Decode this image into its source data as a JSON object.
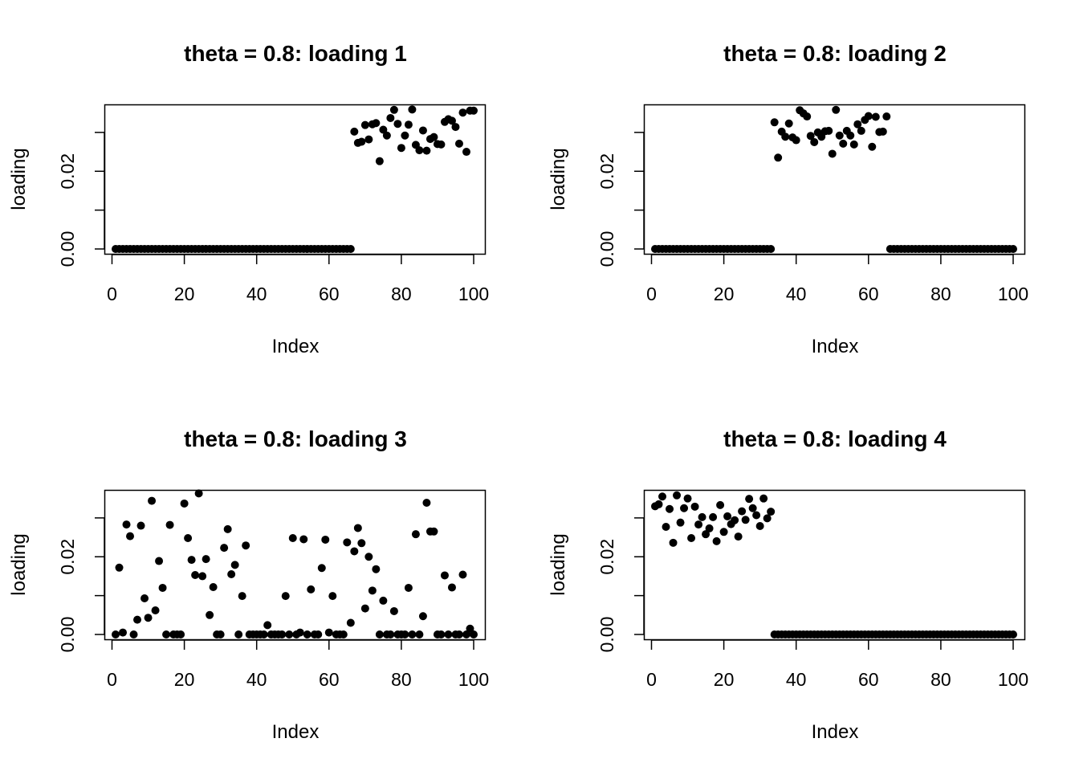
{
  "chart_data": [
    {
      "type": "scatter",
      "title": "theta = 0.8: loading 1",
      "xlabel": "Index",
      "ylabel": "loading",
      "xlim": [
        1,
        100
      ],
      "ylim": [
        0,
        0.037
      ],
      "xticks": [
        0,
        20,
        40,
        60,
        80,
        100
      ],
      "yticks": [
        0.0,
        0.01,
        0.02,
        0.03
      ],
      "ytick_labels": [
        "0.00",
        "",
        "0.02",
        ""
      ],
      "point_color": "#000000",
      "x": [
        1,
        2,
        3,
        4,
        5,
        6,
        7,
        8,
        9,
        10,
        11,
        12,
        13,
        14,
        15,
        16,
        17,
        18,
        19,
        20,
        21,
        22,
        23,
        24,
        25,
        26,
        27,
        28,
        29,
        30,
        31,
        32,
        33,
        34,
        35,
        36,
        37,
        38,
        39,
        40,
        41,
        42,
        43,
        44,
        45,
        46,
        47,
        48,
        49,
        50,
        51,
        52,
        53,
        54,
        55,
        56,
        57,
        58,
        59,
        60,
        61,
        62,
        63,
        64,
        65,
        66,
        67,
        68,
        69,
        70,
        71,
        72,
        73,
        74,
        75,
        76,
        77,
        78,
        79,
        80,
        81,
        82,
        83,
        84,
        85,
        86,
        87,
        88,
        89,
        90,
        91,
        92,
        93,
        94,
        95,
        96,
        97,
        98,
        99,
        100
      ],
      "y": [
        0,
        0,
        0,
        0,
        0,
        0,
        0,
        0,
        0,
        0,
        0,
        0,
        0,
        0,
        0,
        0,
        0,
        0,
        0,
        0,
        0,
        0,
        0,
        0,
        0,
        0,
        0,
        0,
        0,
        0,
        0,
        0,
        0,
        0,
        0,
        0,
        0,
        0,
        0,
        0,
        0,
        0,
        0,
        0,
        0,
        0,
        0,
        0,
        0,
        0,
        0,
        0,
        0,
        0,
        0,
        0,
        0,
        0,
        0,
        0,
        0,
        0,
        0,
        0,
        0,
        0,
        0.0302,
        0.0273,
        0.0276,
        0.0319,
        0.0282,
        0.0321,
        0.0324,
        0.0226,
        0.0307,
        0.0292,
        0.0337,
        0.0358,
        0.0322,
        0.026,
        0.0292,
        0.032,
        0.0359,
        0.0268,
        0.0254,
        0.0305,
        0.0253,
        0.0283,
        0.0288,
        0.027,
        0.0269,
        0.0327,
        0.0334,
        0.033,
        0.0314,
        0.0271,
        0.0351,
        0.025,
        0.0356,
        0.0356
      ]
    },
    {
      "type": "scatter",
      "title": "theta = 0.8: loading 2",
      "xlabel": "Index",
      "ylabel": "loading",
      "xlim": [
        1,
        100
      ],
      "ylim": [
        0,
        0.037
      ],
      "xticks": [
        0,
        20,
        40,
        60,
        80,
        100
      ],
      "yticks": [
        0.0,
        0.01,
        0.02,
        0.03
      ],
      "ytick_labels": [
        "0.00",
        "",
        "0.02",
        ""
      ],
      "point_color": "#000000",
      "x": [
        1,
        2,
        3,
        4,
        5,
        6,
        7,
        8,
        9,
        10,
        11,
        12,
        13,
        14,
        15,
        16,
        17,
        18,
        19,
        20,
        21,
        22,
        23,
        24,
        25,
        26,
        27,
        28,
        29,
        30,
        31,
        32,
        33,
        34,
        35,
        36,
        37,
        38,
        39,
        40,
        41,
        42,
        43,
        44,
        45,
        46,
        47,
        48,
        49,
        50,
        51,
        52,
        53,
        54,
        55,
        56,
        57,
        58,
        59,
        60,
        61,
        62,
        63,
        64,
        65,
        66,
        67,
        68,
        69,
        70,
        71,
        72,
        73,
        74,
        75,
        76,
        77,
        78,
        79,
        80,
        81,
        82,
        83,
        84,
        85,
        86,
        87,
        88,
        89,
        90,
        91,
        92,
        93,
        94,
        95,
        96,
        97,
        98,
        99,
        100
      ],
      "y": [
        0,
        0,
        0,
        0,
        0,
        0,
        0,
        0,
        0,
        0,
        0,
        0,
        0,
        0,
        0,
        0,
        0,
        0,
        0,
        0,
        0,
        0,
        0,
        0,
        0,
        0,
        0,
        0,
        0,
        0,
        0,
        0,
        0,
        0.0326,
        0.0235,
        0.0302,
        0.0289,
        0.0323,
        0.0287,
        0.028,
        0.0357,
        0.0349,
        0.0341,
        0.0291,
        0.0275,
        0.03,
        0.0289,
        0.0303,
        0.0304,
        0.0245,
        0.0358,
        0.0292,
        0.0271,
        0.0304,
        0.0292,
        0.0269,
        0.0321,
        0.0304,
        0.0332,
        0.0342,
        0.0263,
        0.034,
        0.0301,
        0.0302,
        0.0341,
        0,
        0,
        0,
        0,
        0,
        0,
        0,
        0,
        0,
        0,
        0,
        0,
        0,
        0,
        0,
        0,
        0,
        0,
        0,
        0,
        0,
        0,
        0,
        0,
        0,
        0,
        0,
        0,
        0,
        0,
        0,
        0,
        0,
        0,
        0
      ]
    },
    {
      "type": "scatter",
      "title": "theta = 0.8: loading 3",
      "xlabel": "Index",
      "ylabel": "loading",
      "xlim": [
        1,
        100
      ],
      "ylim": [
        0,
        0.037
      ],
      "xticks": [
        0,
        20,
        40,
        60,
        80,
        100
      ],
      "yticks": [
        0.0,
        0.01,
        0.02,
        0.03
      ],
      "ytick_labels": [
        "0.00",
        "",
        "0.02",
        ""
      ],
      "point_color": "#000000",
      "x": [
        1,
        2,
        3,
        4,
        5,
        6,
        7,
        8,
        9,
        10,
        11,
        12,
        13,
        14,
        15,
        16,
        17,
        18,
        19,
        20,
        21,
        22,
        23,
        24,
        25,
        26,
        27,
        28,
        29,
        30,
        31,
        32,
        33,
        34,
        35,
        36,
        37,
        38,
        39,
        40,
        41,
        42,
        43,
        44,
        45,
        46,
        47,
        48,
        49,
        50,
        51,
        52,
        53,
        54,
        55,
        56,
        57,
        58,
        59,
        60,
        61,
        62,
        63,
        64,
        65,
        66,
        67,
        68,
        69,
        70,
        71,
        72,
        73,
        74,
        75,
        76,
        77,
        78,
        79,
        80,
        81,
        82,
        83,
        84,
        85,
        86,
        87,
        88,
        89,
        90,
        91,
        92,
        93,
        94,
        95,
        96,
        97,
        98,
        99,
        100
      ],
      "y": [
        0,
        0.0172,
        0.0005,
        0.0283,
        0.0253,
        0,
        0.0038,
        0.028,
        0.0093,
        0.0043,
        0.0344,
        0.0062,
        0.0189,
        0.012,
        0,
        0.0282,
        0,
        0,
        0,
        0.0337,
        0.0248,
        0.0192,
        0.0153,
        0.0363,
        0.015,
        0.0194,
        0.005,
        0.0122,
        0,
        0,
        0.0223,
        0.0271,
        0.0155,
        0.0179,
        0,
        0.0099,
        0.0229,
        0,
        0,
        0,
        0,
        0,
        0.0024,
        0,
        0,
        0,
        0,
        0.0099,
        0,
        0.0248,
        0,
        0.0005,
        0.0245,
        0,
        0.0116,
        0,
        0,
        0.0171,
        0.0244,
        0.0005,
        0.0099,
        0,
        0,
        0,
        0.0237,
        0.003,
        0.0214,
        0.0274,
        0.0235,
        0.0067,
        0.02,
        0.0113,
        0.0168,
        0,
        0.0087,
        0,
        0,
        0.006,
        0,
        0,
        0,
        0.012,
        0,
        0.0258,
        0,
        0.0047,
        0.0339,
        0.0265,
        0.0265,
        0,
        0,
        0.0152,
        0,
        0.0121,
        0,
        0,
        0.0154,
        0,
        0.0015,
        0
      ]
    },
    {
      "type": "scatter",
      "title": "theta = 0.8: loading 4",
      "xlabel": "Index",
      "ylabel": "loading",
      "xlim": [
        1,
        100
      ],
      "ylim": [
        0,
        0.037
      ],
      "xticks": [
        0,
        20,
        40,
        60,
        80,
        100
      ],
      "yticks": [
        0.0,
        0.01,
        0.02,
        0.03
      ],
      "ytick_labels": [
        "0.00",
        "",
        "0.02",
        ""
      ],
      "point_color": "#000000",
      "x": [
        1,
        2,
        3,
        4,
        5,
        6,
        7,
        8,
        9,
        10,
        11,
        12,
        13,
        14,
        15,
        16,
        17,
        18,
        19,
        20,
        21,
        22,
        23,
        24,
        25,
        26,
        27,
        28,
        29,
        30,
        31,
        32,
        33,
        34,
        35,
        36,
        37,
        38,
        39,
        40,
        41,
        42,
        43,
        44,
        45,
        46,
        47,
        48,
        49,
        50,
        51,
        52,
        53,
        54,
        55,
        56,
        57,
        58,
        59,
        60,
        61,
        62,
        63,
        64,
        65,
        66,
        67,
        68,
        69,
        70,
        71,
        72,
        73,
        74,
        75,
        76,
        77,
        78,
        79,
        80,
        81,
        82,
        83,
        84,
        85,
        86,
        87,
        88,
        89,
        90,
        91,
        92,
        93,
        94,
        95,
        96,
        97,
        98,
        99,
        100
      ],
      "y": [
        0.033,
        0.0335,
        0.0355,
        0.0277,
        0.0323,
        0.0236,
        0.0358,
        0.0288,
        0.0325,
        0.035,
        0.0248,
        0.0329,
        0.0283,
        0.0302,
        0.0258,
        0.0273,
        0.0302,
        0.024,
        0.0333,
        0.0264,
        0.0304,
        0.0284,
        0.0294,
        0.0252,
        0.0317,
        0.0295,
        0.0349,
        0.0325,
        0.0307,
        0.0279,
        0.035,
        0.0299,
        0.0316,
        0,
        0,
        0,
        0,
        0,
        0,
        0,
        0,
        0,
        0,
        0,
        0,
        0,
        0,
        0,
        0,
        0,
        0,
        0,
        0,
        0,
        0,
        0,
        0,
        0,
        0,
        0,
        0,
        0,
        0,
        0,
        0,
        0,
        0,
        0,
        0,
        0,
        0,
        0,
        0,
        0,
        0,
        0,
        0,
        0,
        0,
        0,
        0,
        0,
        0,
        0,
        0,
        0,
        0,
        0,
        0,
        0,
        0,
        0,
        0,
        0,
        0,
        0,
        0,
        0,
        0,
        0
      ]
    }
  ]
}
